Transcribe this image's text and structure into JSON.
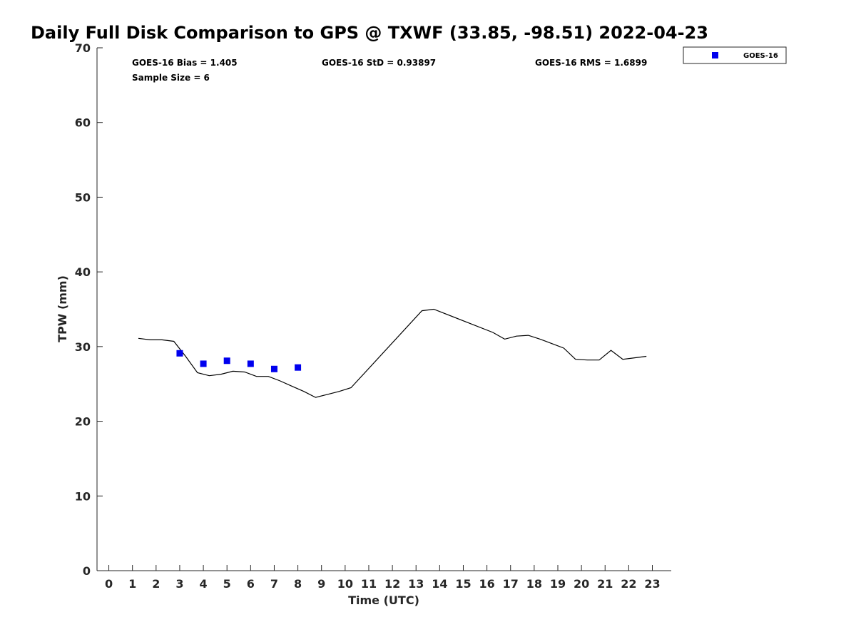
{
  "chart_data": {
    "type": "line",
    "title": "Daily Full Disk Comparison to GPS @ TXWF (33.85, -98.51) 2022-04-23",
    "xlabel": "Time (UTC)",
    "ylabel": "TPW (mm)",
    "xlim": [
      -0.5,
      23.8
    ],
    "ylim": [
      0,
      70
    ],
    "xticks": [
      0,
      1,
      2,
      3,
      4,
      5,
      6,
      7,
      8,
      9,
      10,
      11,
      12,
      13,
      14,
      15,
      16,
      17,
      18,
      19,
      20,
      21,
      22,
      23
    ],
    "yticks": [
      0,
      10,
      20,
      30,
      40,
      50,
      60,
      70
    ],
    "grid": false,
    "legend_position": "top-right",
    "stats": {
      "bias": "GOES-16 Bias = 1.405",
      "sample": "Sample Size = 6",
      "std": "GOES-16 StD = 0.93897",
      "rms": "GOES-16 RMS = 1.6899"
    },
    "series": [
      {
        "kind": "line",
        "color": "#000000",
        "x": [
          1.25,
          1.75,
          2.25,
          2.75,
          3.25,
          3.75,
          4.25,
          4.75,
          5.25,
          5.75,
          6.25,
          6.75,
          7.25,
          7.75,
          8.25,
          8.75,
          9.25,
          9.75,
          10.25,
          13.25,
          13.75,
          16.25,
          16.75,
          17.25,
          17.75,
          18.25,
          18.75,
          19.25,
          19.75,
          20.25,
          20.75,
          21.25,
          21.75,
          22.25,
          22.75
        ],
        "y": [
          31.1,
          30.9,
          30.9,
          30.7,
          28.7,
          26.5,
          26.1,
          26.3,
          26.7,
          26.6,
          26.0,
          26.0,
          25.4,
          24.7,
          24.0,
          23.2,
          23.6,
          24.0,
          24.5,
          34.8,
          35.0,
          31.9,
          31.0,
          31.4,
          31.5,
          31.0,
          30.4,
          29.8,
          28.3,
          28.2,
          28.2,
          29.5,
          28.3,
          28.5,
          28.7
        ]
      },
      {
        "kind": "scatter",
        "name": "GOES-16",
        "color": "#0000ee",
        "x": [
          3,
          4,
          5,
          6,
          7,
          8
        ],
        "y": [
          29.1,
          27.7,
          28.1,
          27.7,
          27.0,
          27.2
        ]
      }
    ]
  }
}
